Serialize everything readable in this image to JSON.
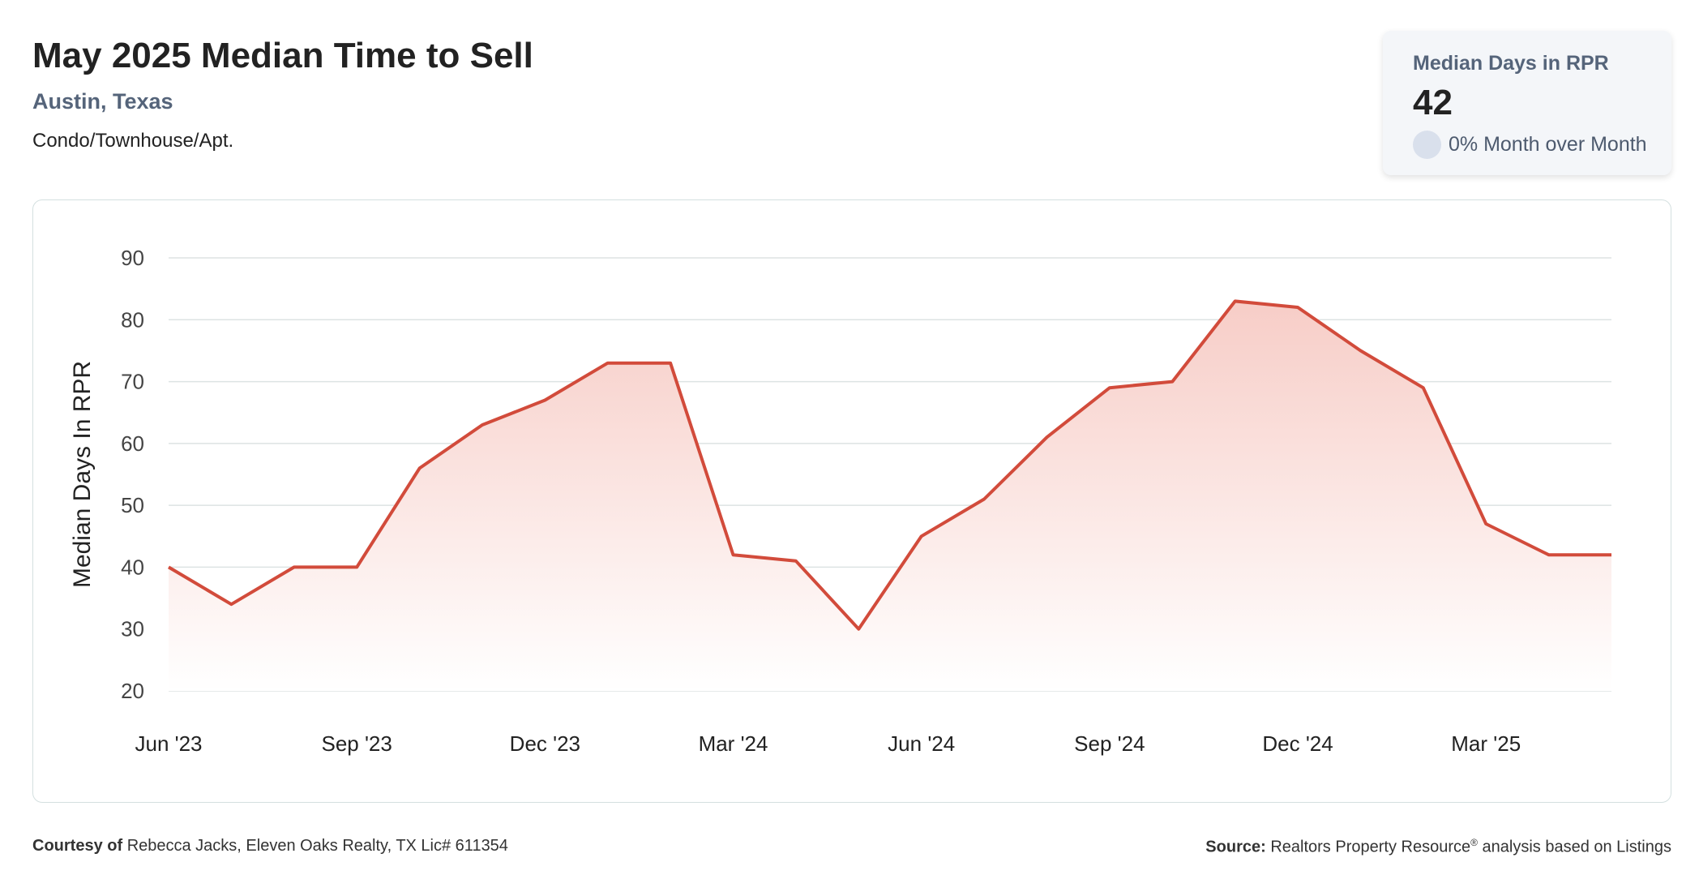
{
  "header": {
    "title": "May 2025 Median Time to Sell",
    "location": "Austin, Texas",
    "property_type": "Condo/Townhouse/Apt."
  },
  "stat_card": {
    "label": "Median Days in RPR",
    "value": "42",
    "change_text": "0% Month over Month"
  },
  "footer": {
    "courtesy_label": "Courtesy of",
    "courtesy_text": "Rebecca Jacks, Eleven Oaks Realty, TX Lic# 611354",
    "source_label": "Source:",
    "source_text_1": "Realtors Property Resource",
    "source_registered": "®",
    "source_text_2": "analysis based on Listings"
  },
  "colors": {
    "accent_slate": "#55647a",
    "line": "#d24b3b",
    "area_top": "#f7cdc7",
    "grid": "#dde3e3"
  },
  "chart_data": {
    "type": "area",
    "title": "",
    "xlabel": "",
    "ylabel": "Median Days In RPR",
    "ylim": [
      20,
      90
    ],
    "y_ticks": [
      20,
      30,
      40,
      50,
      60,
      70,
      80,
      90
    ],
    "grid": true,
    "legend": "none",
    "x": [
      "Jun '23",
      "Jul '23",
      "Aug '23",
      "Sep '23",
      "Oct '23",
      "Nov '23",
      "Dec '23",
      "Jan '24",
      "Feb '24",
      "Mar '24",
      "Apr '24",
      "May '24",
      "Jun '24",
      "Jul '24",
      "Aug '24",
      "Sep '24",
      "Oct '24",
      "Nov '24",
      "Dec '24",
      "Jan '25",
      "Feb '25",
      "Mar '25",
      "Apr '25",
      "May '25"
    ],
    "x_tick_labels": [
      "Jun '23",
      "Sep '23",
      "Dec '23",
      "Mar '24",
      "Jun '24",
      "Sep '24",
      "Dec '24",
      "Mar '25"
    ],
    "series": [
      {
        "values": [
          40,
          34,
          40,
          40,
          56,
          63,
          67,
          73,
          73,
          42,
          41,
          30,
          45,
          51,
          61,
          69,
          70,
          83,
          82,
          75,
          69,
          47,
          42,
          42
        ]
      }
    ]
  }
}
